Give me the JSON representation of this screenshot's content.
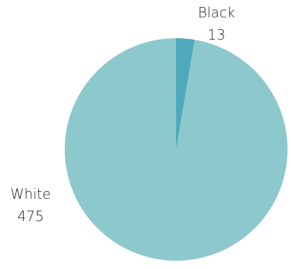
{
  "chart_data": {
    "type": "pie",
    "title": "",
    "slices": [
      {
        "label": "Black",
        "value": 13,
        "color": "#4FA9BC"
      },
      {
        "label": "White",
        "value": 475,
        "color": "#8DC8CD"
      }
    ],
    "start_angle_deg": 0,
    "direction": "clockwise",
    "legend": "none",
    "data_labels": "outside: category name above value"
  }
}
